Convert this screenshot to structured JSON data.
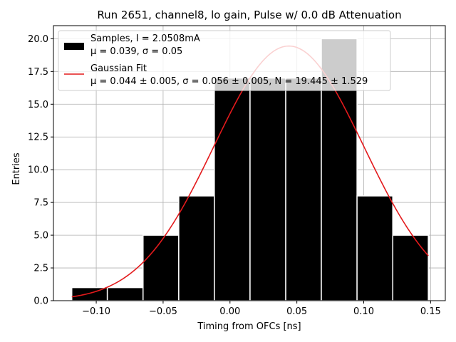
{
  "chart_data": {
    "type": "bar",
    "title": "Run 2651, channel8, lo gain, Pulse w/ 0.0 dB Attenuation",
    "xlabel": "Timing from OFCs [ns]",
    "ylabel": "Entries",
    "xlim": [
      -0.132,
      0.161
    ],
    "ylim": [
      0,
      21
    ],
    "grid": true,
    "legend_placement": "top-left",
    "xticks": [
      -0.1,
      -0.05,
      0.0,
      0.05,
      0.1,
      0.15
    ],
    "xtick_labels": [
      "−0.10",
      "−0.05",
      "0.00",
      "0.05",
      "0.10",
      "0.15"
    ],
    "yticks": [
      0,
      2.5,
      5,
      7.5,
      10,
      12.5,
      15,
      17.5,
      20
    ],
    "ytick_labels": [
      "0.0",
      "2.5",
      "5.0",
      "7.5",
      "10.0",
      "12.5",
      "15.0",
      "17.5",
      "20.0"
    ],
    "histogram": {
      "bin_edges": [
        -0.1183,
        -0.0917,
        -0.065,
        -0.0383,
        -0.0117,
        0.015,
        0.0417,
        0.0683,
        0.095,
        0.1217,
        0.1483
      ],
      "counts": [
        1,
        1,
        5,
        8,
        17,
        17,
        17,
        20,
        8,
        5
      ],
      "color": "#000000",
      "legend_line1": "Samples, I = 2.0508mA",
      "legend_line2": "μ = 0.039, σ = 0.05"
    },
    "fit": {
      "type": "gaussian",
      "mu": 0.044,
      "sigma": 0.056,
      "N": 19.445,
      "x_range": [
        -0.1183,
        0.1483
      ],
      "color": "#e31a1c",
      "legend_line1": "Gaussian Fit",
      "legend_line2": "μ = 0.044 ± 0.005, σ = 0.056 ± 0.005, N = 19.445 ± 1.529"
    },
    "colors": {
      "grid": "#b0b0b0",
      "legend_bg": "#ffffff",
      "legend_border": "#cccccc",
      "frame": "#000000"
    }
  }
}
